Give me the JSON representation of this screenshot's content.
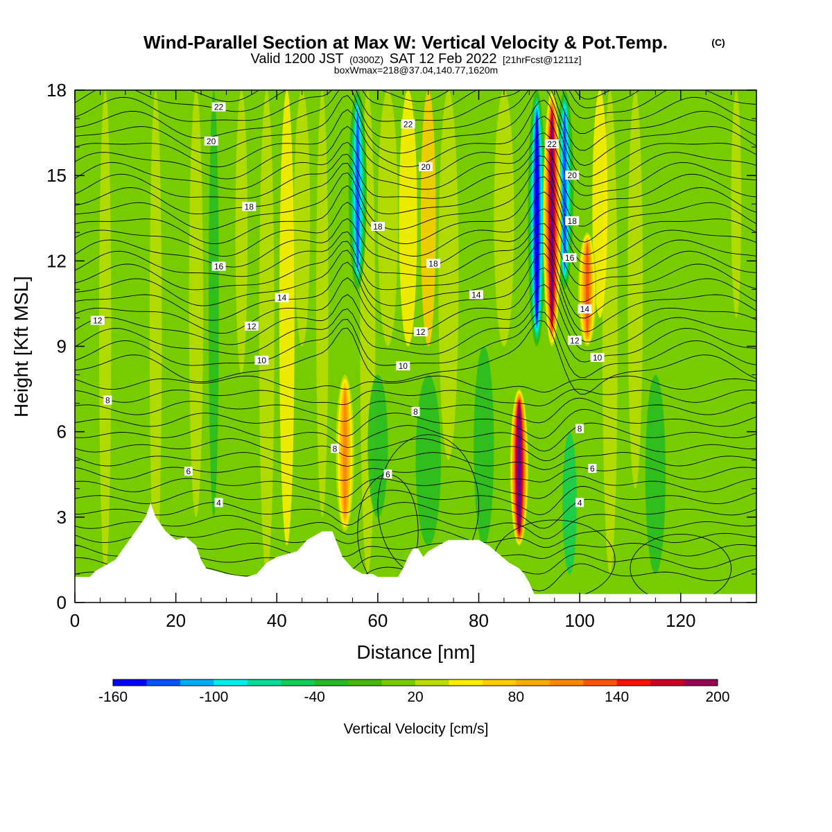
{
  "chart_data": {
    "type": "heatmap",
    "title": {
      "main": "Wind-Parallel Section at Max W: Vertical Velocity & Pot.Temp.",
      "copyright": "(C)",
      "valid_prefix": "Valid 1200 JST",
      "valid_zulu": "(0300Z)",
      "valid_date": "SAT 12 Feb 2022",
      "forecast": "[21hrFcst@1211z]",
      "box_info": "boxWmax=218@37.04,140.77,1620m"
    },
    "xlabel": "Distance [nm]",
    "ylabel": "Height [Kft MSL]",
    "xlim": [
      0,
      135
    ],
    "ylim": [
      0,
      18
    ],
    "x_ticks": [
      "0",
      "20",
      "40",
      "60",
      "80",
      "100",
      "120"
    ],
    "y_ticks": [
      "0",
      "3",
      "6",
      "9",
      "12",
      "15",
      "18"
    ],
    "colorbar": {
      "label": "Vertical Velocity [cm/s]",
      "tick_labels": [
        "-160",
        "-100",
        "-40",
        "20",
        "80",
        "140",
        "200"
      ],
      "levels": [
        -160,
        -140,
        -120,
        -100,
        -80,
        -60,
        -40,
        -20,
        0,
        20,
        40,
        60,
        80,
        100,
        120,
        140,
        160,
        180,
        200
      ],
      "colors": [
        "#0000ff",
        "#0055ff",
        "#00aaff",
        "#00eeee",
        "#00dd99",
        "#11cc55",
        "#22bb22",
        "#44bb00",
        "#77cc00",
        "#bbdd00",
        "#ffee00",
        "#ffcc00",
        "#ffaa00",
        "#ff8800",
        "#ff5500",
        "#ff1100",
        "#cc0022",
        "#990055",
        "#660088"
      ]
    },
    "updraft_features": [
      {
        "x_nm": 53.5,
        "y_kft_range": [
          2.5,
          8.0
        ],
        "w_cm_s": 80
      },
      {
        "x_nm": 88.0,
        "y_kft_range": [
          2.0,
          7.5
        ],
        "w_cm_s": 200
      },
      {
        "x_nm": 94.5,
        "y_kft_range": [
          9.0,
          18.0
        ],
        "w_cm_s": 180
      },
      {
        "x_nm": 101.5,
        "y_kft_range": [
          9.0,
          13.0
        ],
        "w_cm_s": 100
      }
    ],
    "downdraft_features": [
      {
        "x_nm": 56.0,
        "y_kft_range": [
          11.0,
          18.0
        ],
        "w_cm_s": -120
      },
      {
        "x_nm": 91.5,
        "y_kft_range": [
          9.0,
          18.0
        ],
        "w_cm_s": -160
      },
      {
        "x_nm": 97.0,
        "y_kft_range": [
          11.0,
          18.0
        ],
        "w_cm_s": -120
      }
    ],
    "terrain_kft": [
      [
        0,
        0.9
      ],
      [
        3,
        0.9
      ],
      [
        4,
        1.1
      ],
      [
        6,
        1.3
      ],
      [
        8,
        1.5
      ],
      [
        10,
        2.0
      ],
      [
        12,
        2.5
      ],
      [
        14,
        3.0
      ],
      [
        15,
        3.5
      ],
      [
        16,
        3.0
      ],
      [
        18,
        2.5
      ],
      [
        20,
        2.2
      ],
      [
        22,
        2.3
      ],
      [
        24,
        2.0
      ],
      [
        25,
        1.5
      ],
      [
        26,
        1.2
      ],
      [
        28,
        1.1
      ],
      [
        30,
        1.0
      ],
      [
        34,
        0.9
      ],
      [
        36,
        1.0
      ],
      [
        38,
        1.4
      ],
      [
        40,
        1.6
      ],
      [
        42,
        1.7
      ],
      [
        44,
        1.8
      ],
      [
        46,
        2.2
      ],
      [
        48,
        2.4
      ],
      [
        49,
        2.5
      ],
      [
        51,
        2.5
      ],
      [
        53,
        1.6
      ],
      [
        55,
        1.2
      ],
      [
        57,
        1.0
      ],
      [
        59,
        1.0
      ],
      [
        60,
        0.9
      ],
      [
        64,
        0.9
      ],
      [
        65,
        1.2
      ],
      [
        66,
        1.6
      ],
      [
        67,
        1.9
      ],
      [
        68,
        1.9
      ],
      [
        69,
        1.6
      ],
      [
        70,
        1.8
      ],
      [
        72,
        2.0
      ],
      [
        74,
        2.2
      ],
      [
        80,
        2.2
      ],
      [
        82,
        2.0
      ],
      [
        84,
        1.7
      ],
      [
        86,
        1.4
      ],
      [
        88,
        1.2
      ],
      [
        89,
        1.0
      ],
      [
        90,
        0.7
      ],
      [
        91,
        0.3
      ],
      [
        92,
        0.3
      ],
      [
        130,
        0.3
      ],
      [
        135,
        0.3
      ]
    ],
    "theta_contours": [
      {
        "label": "4",
        "base_kft": 1.8
      },
      {
        "label": "6",
        "base_kft": 3.6
      },
      {
        "label": "8",
        "base_kft": 6.6
      },
      {
        "label": "10",
        "base_kft": 8.6
      },
      {
        "label": "12",
        "base_kft": 10.2
      },
      {
        "label": "14",
        "base_kft": 11.3
      },
      {
        "label": "16",
        "base_kft": 12.8
      },
      {
        "label": "18",
        "base_kft": 14.2
      },
      {
        "label": "20",
        "base_kft": 16.2
      },
      {
        "label": "22",
        "base_kft": 17.2
      }
    ],
    "contour_labels": [
      {
        "text": "22",
        "x": 28.5,
        "y": 17.4
      },
      {
        "text": "20",
        "x": 27.0,
        "y": 16.2
      },
      {
        "text": "18",
        "x": 34.5,
        "y": 13.9
      },
      {
        "text": "16",
        "x": 28.5,
        "y": 11.8
      },
      {
        "text": "14",
        "x": 41.0,
        "y": 10.7
      },
      {
        "text": "12",
        "x": 35.0,
        "y": 9.7
      },
      {
        "text": "10",
        "x": 37.0,
        "y": 8.5
      },
      {
        "text": "12",
        "x": 4.5,
        "y": 9.9
      },
      {
        "text": "8",
        "x": 6.5,
        "y": 7.1
      },
      {
        "text": "6",
        "x": 22.5,
        "y": 4.6
      },
      {
        "text": "4",
        "x": 28.5,
        "y": 3.5
      },
      {
        "text": "22",
        "x": 66.0,
        "y": 16.8
      },
      {
        "text": "20",
        "x": 69.5,
        "y": 15.3
      },
      {
        "text": "18",
        "x": 60.0,
        "y": 13.2
      },
      {
        "text": "18",
        "x": 71.0,
        "y": 11.9
      },
      {
        "text": "14",
        "x": 79.5,
        "y": 10.8
      },
      {
        "text": "12",
        "x": 68.5,
        "y": 9.5
      },
      {
        "text": "10",
        "x": 65.0,
        "y": 8.3
      },
      {
        "text": "8",
        "x": 67.5,
        "y": 6.7
      },
      {
        "text": "8",
        "x": 51.5,
        "y": 5.4
      },
      {
        "text": "6",
        "x": 62.0,
        "y": 4.5
      },
      {
        "text": "22",
        "x": 94.5,
        "y": 16.1
      },
      {
        "text": "20",
        "x": 98.5,
        "y": 15.0
      },
      {
        "text": "18",
        "x": 98.5,
        "y": 13.4
      },
      {
        "text": "16",
        "x": 98.0,
        "y": 12.1
      },
      {
        "text": "14",
        "x": 101.0,
        "y": 10.3
      },
      {
        "text": "12",
        "x": 99.0,
        "y": 9.2
      },
      {
        "text": "10",
        "x": 103.5,
        "y": 8.6
      },
      {
        "text": "8",
        "x": 100.0,
        "y": 6.1
      },
      {
        "text": "6",
        "x": 102.5,
        "y": 4.7
      },
      {
        "text": "4",
        "x": 100.0,
        "y": 3.5
      }
    ]
  }
}
